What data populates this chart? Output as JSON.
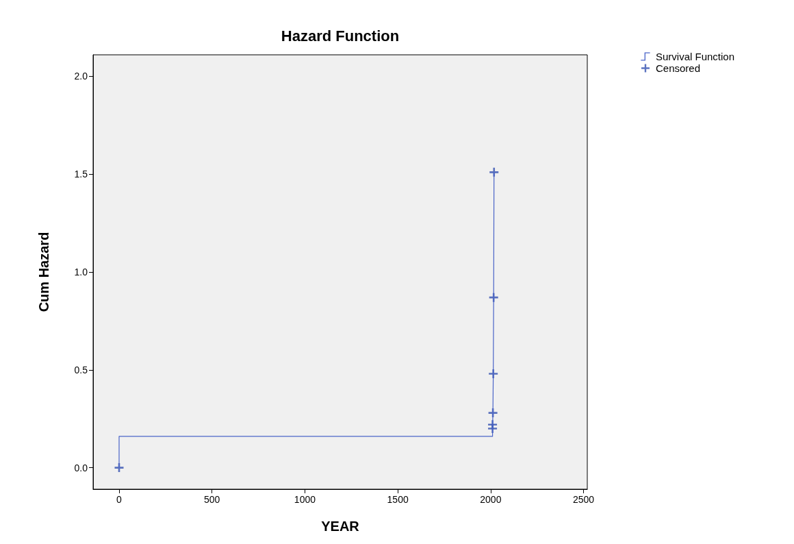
{
  "chart_data": {
    "type": "step",
    "title": "Hazard Function",
    "xlabel": "YEAR",
    "ylabel": "Cum Hazard",
    "xlim": [
      -140,
      2520
    ],
    "xticks": [
      0,
      500,
      1000,
      1500,
      2000,
      2500
    ],
    "ylim": [
      -0.11,
      2.11
    ],
    "yticks": [
      {
        "value": 0,
        "label": "0.0"
      },
      {
        "value": 0.5,
        "label": "0.5"
      },
      {
        "value": 1,
        "label": "1.0"
      },
      {
        "value": 1.5,
        "label": "1.5"
      },
      {
        "value": 2,
        "label": "2.0"
      }
    ],
    "grid": false,
    "legend": "top right",
    "series": [
      {
        "name": "Survival Function",
        "color": "#4a64c8",
        "marker": "none",
        "x": [
          0,
          0,
          2010,
          2012,
          2014,
          2016,
          2018
        ],
        "values": [
          0,
          0.16,
          0.2,
          0.28,
          0.48,
          0.87,
          1.51
        ]
      },
      {
        "name": "Censored",
        "type": "scatter",
        "color": "#3350b0",
        "marker": "cross",
        "x": [
          0,
          2010,
          2010,
          2012,
          2014,
          2016,
          2018
        ],
        "values": [
          0,
          0.2,
          0.22,
          0.28,
          0.48,
          0.87,
          1.51
        ]
      }
    ]
  }
}
